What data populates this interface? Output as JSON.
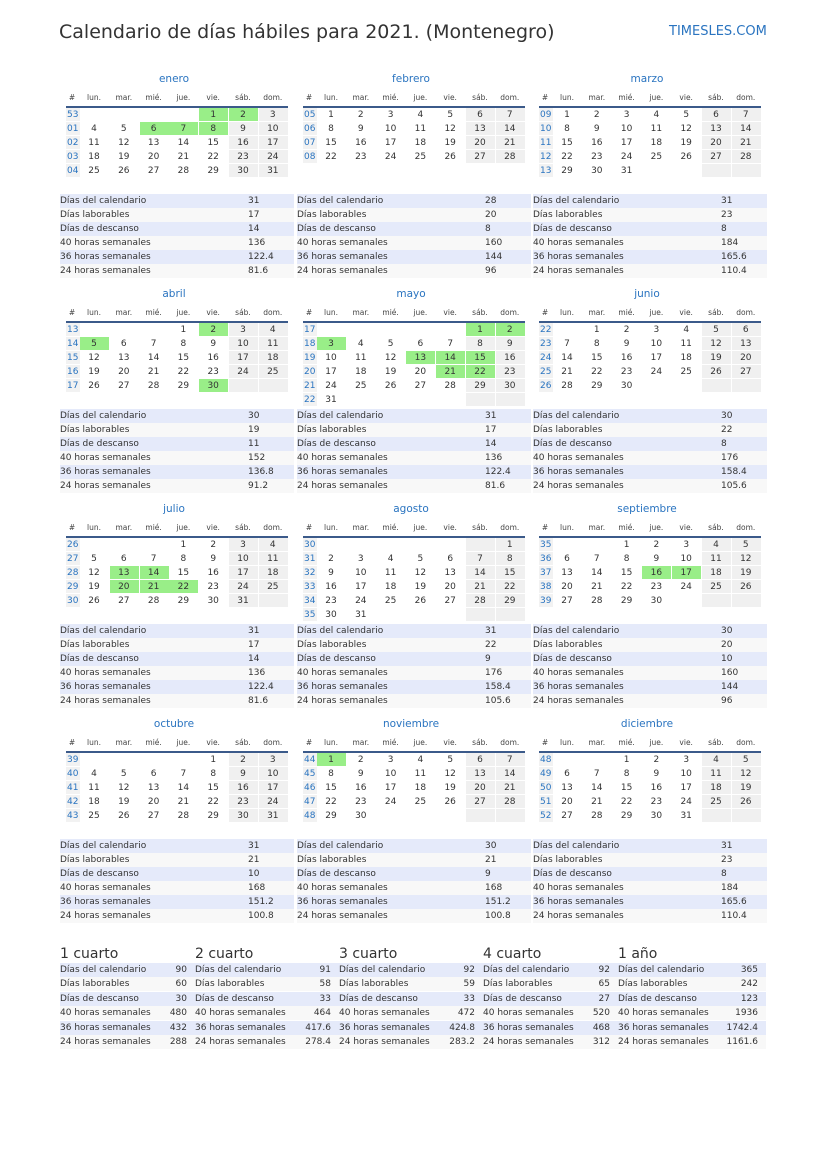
{
  "header": {
    "title": "Calendario de días hábiles para 2021. (Montenegro)",
    "brand": "TIMESLES.COM"
  },
  "weekday_labels": [
    "#",
    "lun.",
    "mar.",
    "mié.",
    "jue.",
    "vie.",
    "sáb.",
    "dom."
  ],
  "stat_labels": [
    "Días del calendario",
    "Días laborables",
    "Días de descanso",
    "40 horas semanales",
    "36 horas semanales",
    "24 horas semanales"
  ],
  "months": [
    {
      "name": "enero",
      "holidays": [
        1,
        2,
        6,
        7,
        8
      ],
      "weeks": [
        {
          "week": "53",
          "days": [
            null,
            null,
            null,
            null,
            1,
            2,
            3
          ]
        },
        {
          "week": "01",
          "days": [
            4,
            5,
            6,
            7,
            8,
            9,
            10
          ]
        },
        {
          "week": "02",
          "days": [
            11,
            12,
            13,
            14,
            15,
            16,
            17
          ]
        },
        {
          "week": "03",
          "days": [
            18,
            19,
            20,
            21,
            22,
            23,
            24
          ]
        },
        {
          "week": "04",
          "days": [
            25,
            26,
            27,
            28,
            29,
            30,
            31
          ]
        }
      ],
      "stats": [
        31,
        17,
        14,
        136,
        122.4,
        81.6
      ]
    },
    {
      "name": "febrero",
      "holidays": [],
      "weeks": [
        {
          "week": "05",
          "days": [
            1,
            2,
            3,
            4,
            5,
            6,
            7
          ]
        },
        {
          "week": "06",
          "days": [
            8,
            9,
            10,
            11,
            12,
            13,
            14
          ]
        },
        {
          "week": "07",
          "days": [
            15,
            16,
            17,
            18,
            19,
            20,
            21
          ]
        },
        {
          "week": "08",
          "days": [
            22,
            23,
            24,
            25,
            26,
            27,
            28
          ]
        }
      ],
      "stats": [
        28,
        20,
        8,
        160,
        144,
        96
      ]
    },
    {
      "name": "marzo",
      "holidays": [],
      "weeks": [
        {
          "week": "09",
          "days": [
            1,
            2,
            3,
            4,
            5,
            6,
            7
          ]
        },
        {
          "week": "10",
          "days": [
            8,
            9,
            10,
            11,
            12,
            13,
            14
          ]
        },
        {
          "week": "11",
          "days": [
            15,
            16,
            17,
            18,
            19,
            20,
            21
          ]
        },
        {
          "week": "12",
          "days": [
            22,
            23,
            24,
            25,
            26,
            27,
            28
          ]
        },
        {
          "week": "13",
          "days": [
            29,
            30,
            31,
            null,
            null,
            null,
            null
          ]
        }
      ],
      "stats": [
        31,
        23,
        8,
        184,
        165.6,
        110.4
      ]
    },
    {
      "name": "abril",
      "holidays": [
        2,
        5,
        30
      ],
      "weeks": [
        {
          "week": "13",
          "days": [
            null,
            null,
            null,
            1,
            2,
            3,
            4
          ]
        },
        {
          "week": "14",
          "days": [
            5,
            6,
            7,
            8,
            9,
            10,
            11
          ]
        },
        {
          "week": "15",
          "days": [
            12,
            13,
            14,
            15,
            16,
            17,
            18
          ]
        },
        {
          "week": "16",
          "days": [
            19,
            20,
            21,
            22,
            23,
            24,
            25
          ]
        },
        {
          "week": "17",
          "days": [
            26,
            27,
            28,
            29,
            30,
            null,
            null
          ]
        }
      ],
      "stats": [
        30,
        19,
        11,
        152,
        136.8,
        91.2
      ]
    },
    {
      "name": "mayo",
      "holidays": [
        1,
        2,
        3,
        13,
        14,
        15,
        21,
        22
      ],
      "weeks": [
        {
          "week": "17",
          "days": [
            null,
            null,
            null,
            null,
            null,
            1,
            2
          ]
        },
        {
          "week": "18",
          "days": [
            3,
            4,
            5,
            6,
            7,
            8,
            9
          ]
        },
        {
          "week": "19",
          "days": [
            10,
            11,
            12,
            13,
            14,
            15,
            16
          ]
        },
        {
          "week": "20",
          "days": [
            17,
            18,
            19,
            20,
            21,
            22,
            23
          ]
        },
        {
          "week": "21",
          "days": [
            24,
            25,
            26,
            27,
            28,
            29,
            30
          ]
        },
        {
          "week": "22",
          "days": [
            31,
            null,
            null,
            null,
            null,
            null,
            null
          ]
        }
      ],
      "stats": [
        31,
        17,
        14,
        136,
        122.4,
        81.6
      ]
    },
    {
      "name": "junio",
      "holidays": [],
      "weeks": [
        {
          "week": "22",
          "days": [
            null,
            1,
            2,
            3,
            4,
            5,
            6
          ]
        },
        {
          "week": "23",
          "days": [
            7,
            8,
            9,
            10,
            11,
            12,
            13
          ]
        },
        {
          "week": "24",
          "days": [
            14,
            15,
            16,
            17,
            18,
            19,
            20
          ]
        },
        {
          "week": "25",
          "days": [
            21,
            22,
            23,
            24,
            25,
            26,
            27
          ]
        },
        {
          "week": "26",
          "days": [
            28,
            29,
            30,
            null,
            null,
            null,
            null
          ]
        }
      ],
      "stats": [
        30,
        22,
        8,
        176,
        158.4,
        105.6
      ]
    },
    {
      "name": "julio",
      "holidays": [
        13,
        14,
        20,
        21,
        22
      ],
      "weeks": [
        {
          "week": "26",
          "days": [
            null,
            null,
            null,
            1,
            2,
            3,
            4
          ]
        },
        {
          "week": "27",
          "days": [
            5,
            6,
            7,
            8,
            9,
            10,
            11
          ]
        },
        {
          "week": "28",
          "days": [
            12,
            13,
            14,
            15,
            16,
            17,
            18
          ]
        },
        {
          "week": "29",
          "days": [
            19,
            20,
            21,
            22,
            23,
            24,
            25
          ]
        },
        {
          "week": "30",
          "days": [
            26,
            27,
            28,
            29,
            30,
            31,
            null
          ]
        }
      ],
      "stats": [
        31,
        17,
        14,
        136,
        122.4,
        81.6
      ]
    },
    {
      "name": "agosto",
      "holidays": [],
      "weeks": [
        {
          "week": "30",
          "days": [
            null,
            null,
            null,
            null,
            null,
            null,
            1
          ]
        },
        {
          "week": "31",
          "days": [
            2,
            3,
            4,
            5,
            6,
            7,
            8
          ]
        },
        {
          "week": "32",
          "days": [
            9,
            10,
            11,
            12,
            13,
            14,
            15
          ]
        },
        {
          "week": "33",
          "days": [
            16,
            17,
            18,
            19,
            20,
            21,
            22
          ]
        },
        {
          "week": "34",
          "days": [
            23,
            24,
            25,
            26,
            27,
            28,
            29
          ]
        },
        {
          "week": "35",
          "days": [
            30,
            31,
            null,
            null,
            null,
            null,
            null
          ]
        }
      ],
      "stats": [
        31,
        22,
        9,
        176,
        158.4,
        105.6
      ]
    },
    {
      "name": "septiembre",
      "holidays": [
        16,
        17
      ],
      "weeks": [
        {
          "week": "35",
          "days": [
            null,
            null,
            1,
            2,
            3,
            4,
            5
          ]
        },
        {
          "week": "36",
          "days": [
            6,
            7,
            8,
            9,
            10,
            11,
            12
          ]
        },
        {
          "week": "37",
          "days": [
            13,
            14,
            15,
            16,
            17,
            18,
            19
          ]
        },
        {
          "week": "38",
          "days": [
            20,
            21,
            22,
            23,
            24,
            25,
            26
          ]
        },
        {
          "week": "39",
          "days": [
            27,
            28,
            29,
            30,
            null,
            null,
            null
          ]
        }
      ],
      "stats": [
        30,
        20,
        10,
        160,
        144,
        96
      ]
    },
    {
      "name": "octubre",
      "holidays": [],
      "weeks": [
        {
          "week": "39",
          "days": [
            null,
            null,
            null,
            null,
            1,
            2,
            3
          ]
        },
        {
          "week": "40",
          "days": [
            4,
            5,
            6,
            7,
            8,
            9,
            10
          ]
        },
        {
          "week": "41",
          "days": [
            11,
            12,
            13,
            14,
            15,
            16,
            17
          ]
        },
        {
          "week": "42",
          "days": [
            18,
            19,
            20,
            21,
            22,
            23,
            24
          ]
        },
        {
          "week": "43",
          "days": [
            25,
            26,
            27,
            28,
            29,
            30,
            31
          ]
        }
      ],
      "stats": [
        31,
        21,
        10,
        168,
        151.2,
        100.8
      ]
    },
    {
      "name": "noviembre",
      "holidays": [
        1
      ],
      "weeks": [
        {
          "week": "44",
          "days": [
            1,
            2,
            3,
            4,
            5,
            6,
            7
          ]
        },
        {
          "week": "45",
          "days": [
            8,
            9,
            10,
            11,
            12,
            13,
            14
          ]
        },
        {
          "week": "46",
          "days": [
            15,
            16,
            17,
            18,
            19,
            20,
            21
          ]
        },
        {
          "week": "47",
          "days": [
            22,
            23,
            24,
            25,
            26,
            27,
            28
          ]
        },
        {
          "week": "48",
          "days": [
            29,
            30,
            null,
            null,
            null,
            null,
            null
          ]
        }
      ],
      "stats": [
        30,
        21,
        9,
        168,
        151.2,
        100.8
      ]
    },
    {
      "name": "diciembre",
      "holidays": [],
      "weeks": [
        {
          "week": "48",
          "days": [
            null,
            null,
            1,
            2,
            3,
            4,
            5
          ]
        },
        {
          "week": "49",
          "days": [
            6,
            7,
            8,
            9,
            10,
            11,
            12
          ]
        },
        {
          "week": "50",
          "days": [
            13,
            14,
            15,
            16,
            17,
            18,
            19
          ]
        },
        {
          "week": "51",
          "days": [
            20,
            21,
            22,
            23,
            24,
            25,
            26
          ]
        },
        {
          "week": "52",
          "days": [
            27,
            28,
            29,
            30,
            31,
            null,
            null
          ]
        }
      ],
      "stats": [
        31,
        23,
        8,
        184,
        165.6,
        110.4
      ]
    }
  ],
  "totals": [
    {
      "title": "1 cuarto",
      "stats": [
        90,
        60,
        30,
        480,
        432,
        288
      ]
    },
    {
      "title": "2 cuarto",
      "stats": [
        91,
        58,
        33,
        464,
        417.6,
        278.4
      ]
    },
    {
      "title": "3 cuarto",
      "stats": [
        92,
        59,
        33,
        472,
        424.8,
        283.2
      ]
    },
    {
      "title": "4 cuarto",
      "stats": [
        92,
        65,
        27,
        520,
        468,
        312
      ]
    },
    {
      "title": "1 año",
      "stats": [
        365,
        242,
        123,
        1936,
        1742.4,
        1161.6
      ]
    }
  ]
}
